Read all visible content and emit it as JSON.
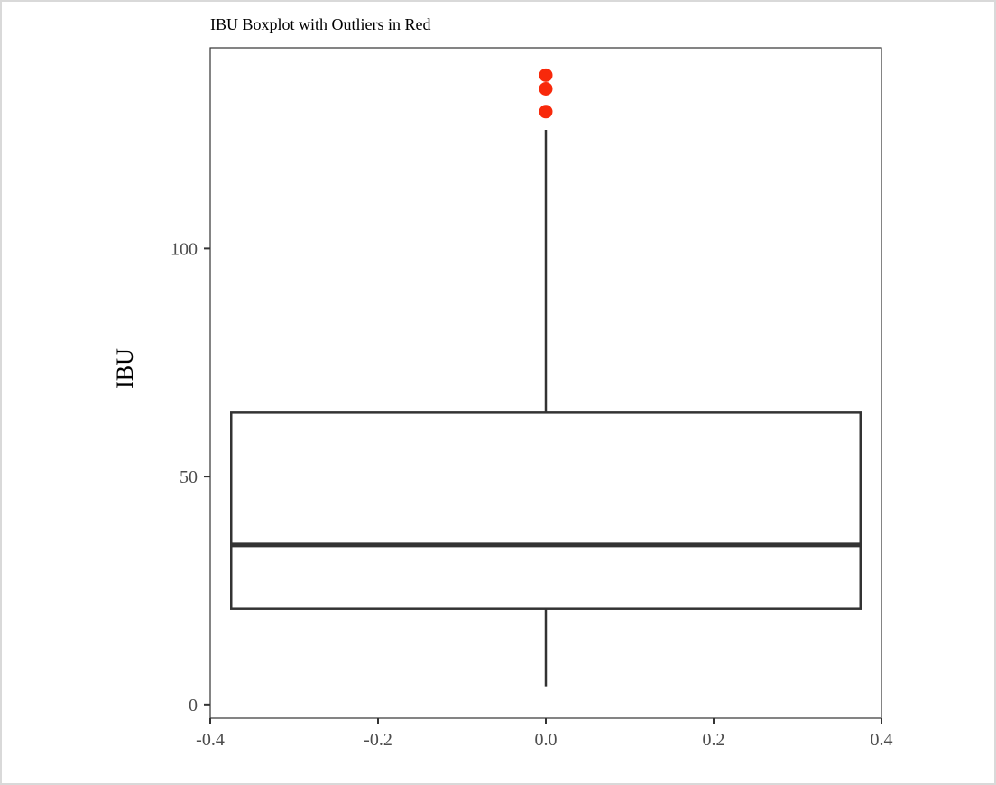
{
  "chart_data": {
    "type": "boxplot",
    "title": "IBU Boxplot with Outliers in Red",
    "xlabel": "",
    "ylabel": "IBU",
    "xlim": [
      -0.4,
      0.4
    ],
    "ylim": [
      -3,
      144
    ],
    "x_ticks": [
      -0.4,
      -0.2,
      0.0,
      0.2,
      0.4
    ],
    "x_tick_labels": [
      "-0.4",
      "-0.2",
      "0.0",
      "0.2",
      "0.4"
    ],
    "y_ticks": [
      0,
      50,
      100
    ],
    "y_tick_labels": [
      "0",
      "50",
      "100"
    ],
    "box": {
      "x": 0.0,
      "x_left": -0.375,
      "x_right": 0.375,
      "min": 4,
      "q1": 21,
      "median": 35,
      "q3": 64,
      "max": 126
    },
    "outliers": [
      130,
      135,
      138
    ],
    "outlier_color": "#f8290b",
    "box_color": "#333333",
    "grid": false
  }
}
